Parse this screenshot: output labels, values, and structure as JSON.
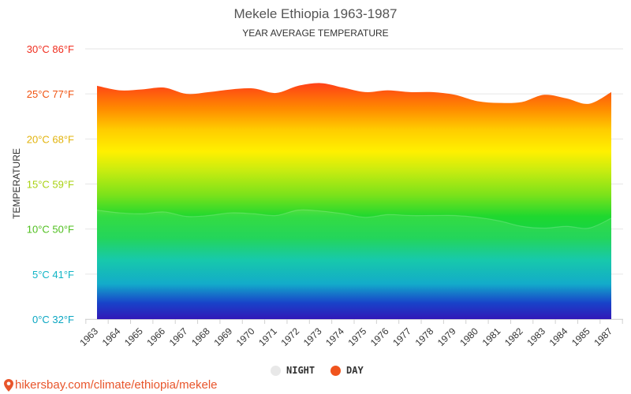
{
  "chart_data": {
    "type": "area",
    "title": "Mekele Ethiopia 1963-1987",
    "subtitle": "YEAR AVERAGE TEMPERATURE",
    "ylabel": "TEMPERATURE",
    "xlabel": "",
    "ylim": [
      0,
      30
    ],
    "grid": true,
    "legend_position": "bottom-center",
    "y_ticks": [
      {
        "value": 0,
        "label": "0°C 32°F",
        "color": "#0aa6c2"
      },
      {
        "value": 5,
        "label": "5°C 41°F",
        "color": "#10b5c5"
      },
      {
        "value": 10,
        "label": "10°C 50°F",
        "color": "#4fbf1e"
      },
      {
        "value": 15,
        "label": "15°C 59°F",
        "color": "#a9d211"
      },
      {
        "value": 20,
        "label": "20°C 68°F",
        "color": "#e2b30b"
      },
      {
        "value": 25,
        "label": "25°C 77°F",
        "color": "#f0520f"
      },
      {
        "value": 30,
        "label": "30°C 86°F",
        "color": "#f02d1e"
      }
    ],
    "categories": [
      "1963",
      "1964",
      "1965",
      "1966",
      "1967",
      "1968",
      "1969",
      "1970",
      "1971",
      "1972",
      "1973",
      "1974",
      "1975",
      "1976",
      "1977",
      "1978",
      "1979",
      "1980",
      "1981",
      "1982",
      "1983",
      "1984",
      "1985",
      "1987"
    ],
    "series": [
      {
        "name": "NIGHT",
        "color": "#e8e8e8",
        "values": [
          12.1,
          11.8,
          11.7,
          11.9,
          11.4,
          11.5,
          11.8,
          11.7,
          11.5,
          12.1,
          12.0,
          11.7,
          11.3,
          11.6,
          11.5,
          11.5,
          11.5,
          11.3,
          10.9,
          10.3,
          10.1,
          10.3,
          10.1,
          11.2
        ]
      },
      {
        "name": "DAY",
        "color": "#f0541d",
        "values": [
          25.9,
          25.4,
          25.5,
          25.7,
          25.0,
          25.2,
          25.5,
          25.6,
          25.1,
          25.9,
          26.2,
          25.7,
          25.2,
          25.4,
          25.2,
          25.2,
          24.9,
          24.2,
          24.0,
          24.1,
          24.9,
          24.5,
          23.9,
          25.2
        ]
      }
    ]
  },
  "source": {
    "text": "hikersbay.com/climate/ethiopia/mekele",
    "icon": "location-pin-icon",
    "color": "#e8552b"
  }
}
